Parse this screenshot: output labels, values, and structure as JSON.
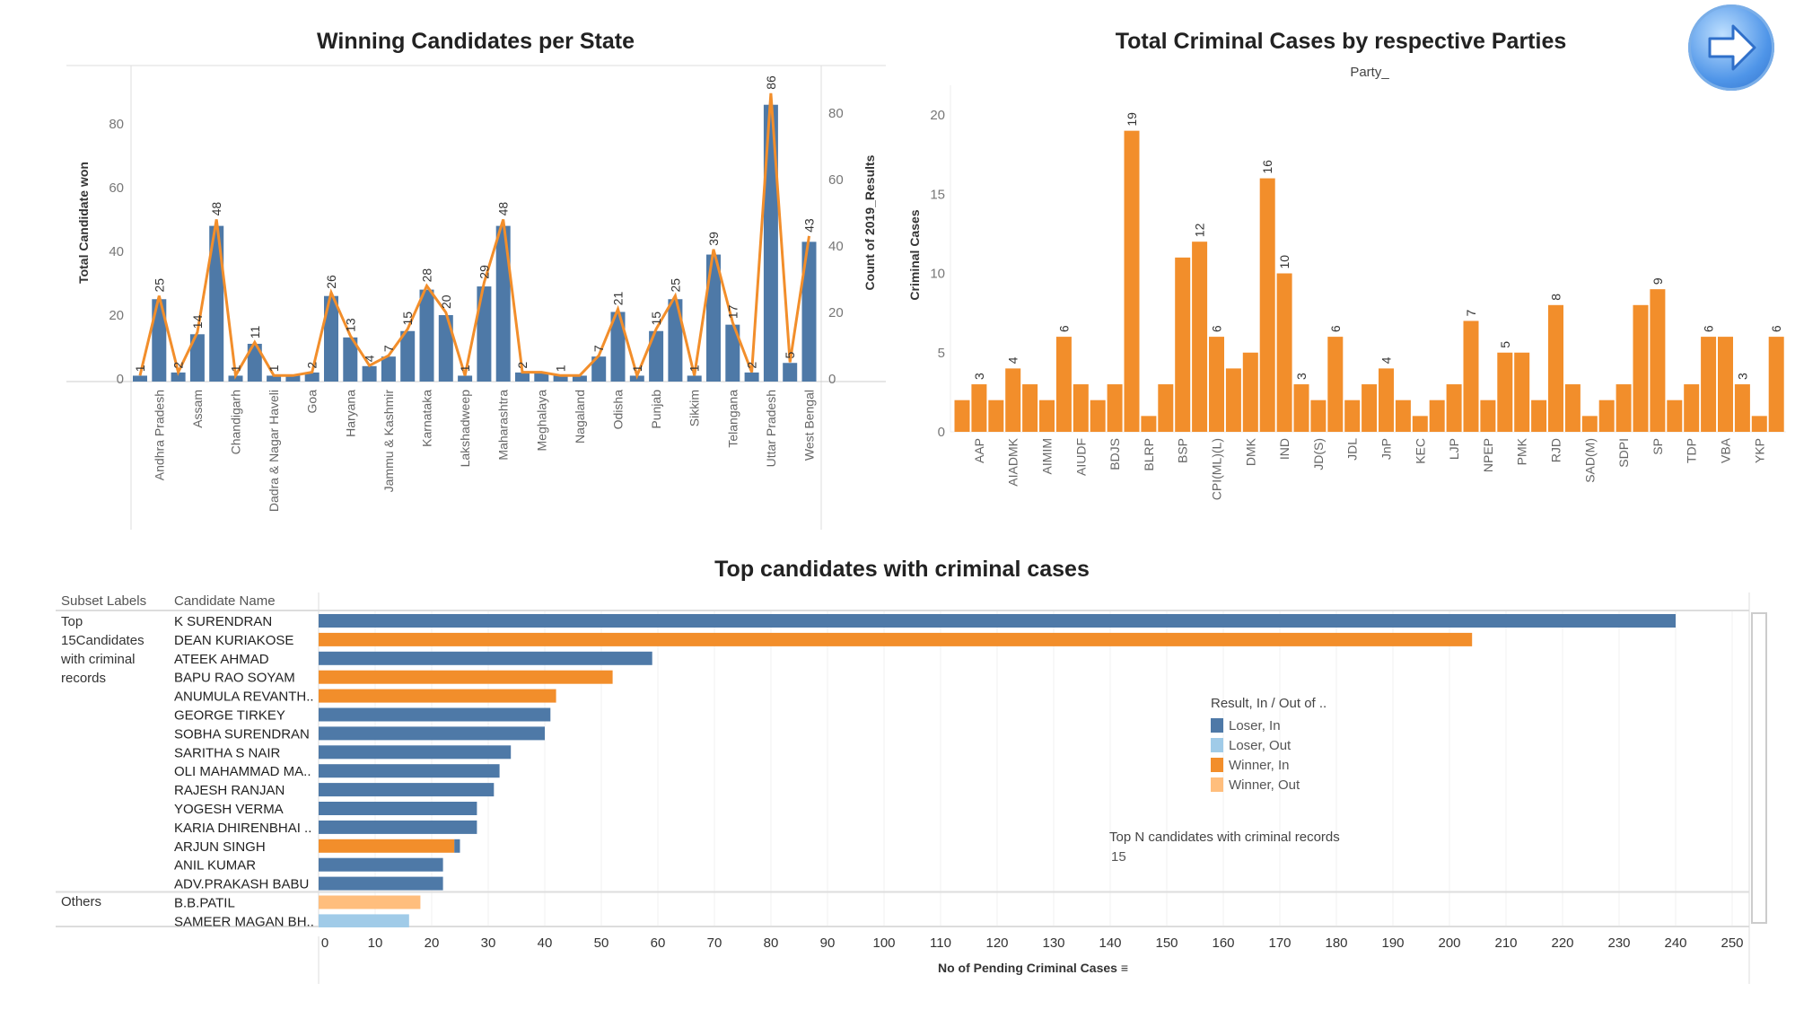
{
  "colors": {
    "loser_in": "#4e79a7",
    "loser_out": "#a0cbe8",
    "winner_in": "#f28e2b",
    "winner_out": "#ffbe7d",
    "bar": "#4e79a7",
    "line": "#f28e2b",
    "party_bar": "#f28e2b"
  },
  "nav": {
    "icon": "arrow-right-icon"
  },
  "chart_data": [
    {
      "type": "bar+line",
      "title": "Winning Candidates per State",
      "ylabel": "Total Candidate won",
      "y2label": "Count of 2019_Results",
      "yticks": [
        "0",
        "20",
        "40",
        "60",
        "80"
      ],
      "y2ticks": [
        "0",
        "20",
        "40",
        "60",
        "80"
      ],
      "ylim": [
        0,
        80
      ],
      "categories": [
        "",
        "Andhra Pradesh",
        "",
        "Assam",
        "",
        "Chandigarh",
        "",
        "Dadra & Nagar Haveli",
        "",
        "Goa",
        "",
        "Haryana",
        "",
        "Jammu & Kashmir",
        "",
        "Karnataka",
        "",
        "Lakshadweep",
        "",
        "Maharashtra",
        "",
        "Meghalaya",
        "",
        "Nagaland",
        "",
        "Odisha",
        "",
        "Punjab",
        "",
        "Sikkim",
        "",
        "Telangana",
        "",
        "Uttar Pradesh",
        "",
        "West Bengal"
      ],
      "values": [
        1,
        25,
        2,
        14,
        48,
        1,
        11,
        1,
        1,
        2,
        26,
        13,
        4,
        7,
        15,
        28,
        20,
        1,
        29,
        48,
        2,
        2,
        1,
        1,
        7,
        21,
        1,
        15,
        25,
        1,
        39,
        17,
        2,
        86,
        5,
        43
      ],
      "data_labels": [
        "1",
        "25",
        "2",
        "14",
        "48",
        "1",
        "11",
        "1",
        "",
        "2",
        "26",
        "13",
        "4",
        "7",
        "15",
        "28",
        "20",
        "1",
        "29",
        "48",
        "2",
        "",
        "1",
        "",
        "7",
        "21",
        "1",
        "15",
        "25",
        "1",
        "39",
        "17",
        "2",
        "86",
        "5",
        "43"
      ],
      "line_values": [
        1,
        25,
        2,
        14,
        48,
        1,
        11,
        1,
        1,
        2,
        26,
        13,
        4,
        7,
        15,
        28,
        20,
        1,
        29,
        48,
        2,
        2,
        1,
        1,
        7,
        21,
        1,
        15,
        25,
        1,
        39,
        17,
        2,
        86,
        5,
        43
      ]
    },
    {
      "type": "bar",
      "title": "Total Criminal Cases by respective Parties",
      "subtitle": "Party_",
      "ylabel": "Criminal Cases",
      "yticks": [
        "0",
        "5",
        "10",
        "15",
        "20"
      ],
      "ylim": [
        0,
        21
      ],
      "categories": [
        "",
        "AAP",
        "",
        "AIADMK",
        "",
        "AIMIM",
        "",
        "AIUDF",
        "",
        "BDJS",
        "",
        "BLRP",
        "",
        "BSP",
        "",
        "CPI(ML)(L)",
        "",
        "DMK",
        "",
        "IND",
        "",
        "JD(S)",
        "",
        "JDL",
        "",
        "JnP",
        "",
        "KEC",
        "",
        "LJP",
        "",
        "NPEP",
        "",
        "PMK",
        "",
        "RJD",
        "",
        "SAD(M)",
        "",
        "SDPI",
        "",
        "SP",
        "",
        "TDP",
        "",
        "VBA",
        "",
        "YKP",
        ""
      ],
      "values": [
        2,
        3,
        2,
        4,
        3,
        2,
        6,
        3,
        2,
        3,
        19,
        1,
        3,
        11,
        12,
        6,
        4,
        5,
        16,
        10,
        3,
        2,
        6,
        2,
        3,
        4,
        2,
        1,
        2,
        3,
        7,
        2,
        5,
        5,
        2,
        8,
        3,
        1,
        2,
        3,
        8,
        9,
        2,
        3,
        6,
        6,
        3,
        1,
        6
      ],
      "data_labels": [
        "",
        "3",
        "",
        "4",
        "",
        "",
        "6",
        "",
        "",
        "",
        "19",
        "",
        "",
        "",
        "12",
        "6",
        "",
        "",
        "16",
        "10",
        "3",
        "",
        "6",
        "",
        "",
        "4",
        "",
        "",
        "",
        "",
        "7",
        "",
        "5",
        "",
        "",
        "8",
        "",
        "",
        "",
        "",
        "",
        "9",
        "",
        "",
        "6",
        "",
        "3",
        "",
        "6"
      ]
    },
    {
      "type": "bar",
      "orientation": "horizontal",
      "title": "Top candidates with criminal cases",
      "col_headers": [
        "Subset Labels",
        "Candidate Name"
      ],
      "xlabel": "No of Pending Criminal Cases",
      "xlim": [
        0,
        250
      ],
      "xticks": [
        "0",
        "10",
        "20",
        "30",
        "40",
        "50",
        "60",
        "70",
        "80",
        "90",
        "100",
        "110",
        "120",
        "130",
        "140",
        "150",
        "160",
        "170",
        "180",
        "190",
        "200",
        "210",
        "220",
        "230",
        "240",
        "250"
      ],
      "groups": [
        {
          "label": "Top 15Candidates with criminal records",
          "rows": [
            {
              "name": "K SURENDRAN",
              "segments": [
                {
                  "status": "loser_in",
                  "value": 240
                }
              ]
            },
            {
              "name": "DEAN KURIAKOSE",
              "segments": [
                {
                  "status": "winner_in",
                  "value": 204
                }
              ]
            },
            {
              "name": "ATEEK AHMAD",
              "segments": [
                {
                  "status": "loser_in",
                  "value": 59
                }
              ]
            },
            {
              "name": "BAPU RAO SOYAM",
              "segments": [
                {
                  "status": "winner_in",
                  "value": 52
                }
              ]
            },
            {
              "name": "ANUMULA REVANTH..",
              "segments": [
                {
                  "status": "winner_in",
                  "value": 42
                }
              ]
            },
            {
              "name": "GEORGE TIRKEY",
              "segments": [
                {
                  "status": "loser_in",
                  "value": 41
                }
              ]
            },
            {
              "name": "SOBHA SURENDRAN",
              "segments": [
                {
                  "status": "loser_in",
                  "value": 40
                }
              ]
            },
            {
              "name": "SARITHA S NAIR",
              "segments": [
                {
                  "status": "loser_in",
                  "value": 34
                }
              ]
            },
            {
              "name": "OLI MAHAMMAD MA..",
              "segments": [
                {
                  "status": "loser_in",
                  "value": 32
                }
              ]
            },
            {
              "name": "RAJESH RANJAN",
              "segments": [
                {
                  "status": "loser_in",
                  "value": 31
                }
              ]
            },
            {
              "name": "YOGESH VERMA",
              "segments": [
                {
                  "status": "loser_in",
                  "value": 28
                }
              ]
            },
            {
              "name": "KARIA DHIRENBHAI ..",
              "segments": [
                {
                  "status": "loser_in",
                  "value": 28
                }
              ]
            },
            {
              "name": "ARJUN SINGH",
              "segments": [
                {
                  "status": "winner_in",
                  "value": 24
                },
                {
                  "status": "loser_in",
                  "value": 1
                }
              ]
            },
            {
              "name": "ANIL KUMAR",
              "segments": [
                {
                  "status": "loser_in",
                  "value": 22
                }
              ]
            },
            {
              "name": "ADV.PRAKASH BABU",
              "segments": [
                {
                  "status": "loser_in",
                  "value": 22
                }
              ]
            }
          ]
        },
        {
          "label": "Others",
          "rows": [
            {
              "name": "B.B.PATIL",
              "segments": [
                {
                  "status": "winner_out",
                  "value": 18
                }
              ]
            },
            {
              "name": "SAMEER MAGAN BH..",
              "segments": [
                {
                  "status": "loser_out",
                  "value": 16
                }
              ]
            }
          ]
        }
      ],
      "legend": {
        "title": "Result, In / Out of ..",
        "items": [
          {
            "label": "Loser, In",
            "key": "loser_in"
          },
          {
            "label": "Loser, Out",
            "key": "loser_out"
          },
          {
            "label": "Winner, In",
            "key": "winner_in"
          },
          {
            "label": "Winner, Out",
            "key": "winner_out"
          }
        ]
      },
      "parameter": {
        "label": "Top N candidates with criminal records",
        "value": "15"
      }
    }
  ]
}
